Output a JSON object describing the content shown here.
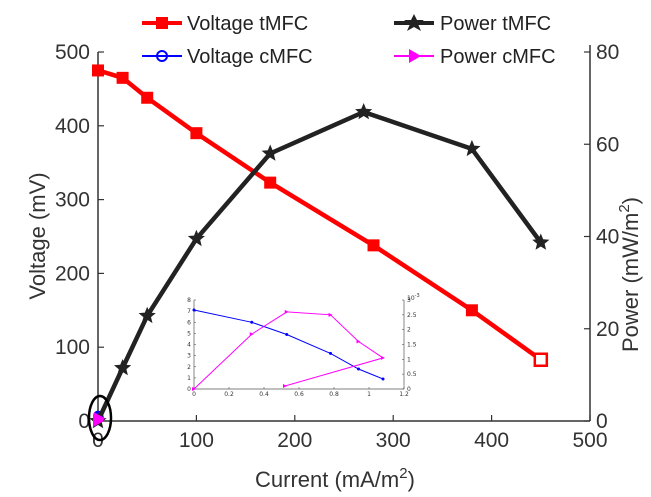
{
  "chart_data": {
    "type": "line",
    "xlabel": "Current (mA/m",
    "xlabel_sup": "2",
    "xlabel_close": ")",
    "ylabel_left": "Voltage (mV)",
    "ylabel_right": "Power (mW/m",
    "ylabel_right_sup": "2",
    "ylabel_right_close": ")",
    "xlim": [
      0,
      500
    ],
    "ylim_left": [
      0,
      500
    ],
    "ylim_right": [
      0,
      80
    ],
    "x_ticks": [
      "0",
      "100",
      "200",
      "300",
      "400",
      "500"
    ],
    "y_left_ticks": [
      "0",
      "100",
      "200",
      "300",
      "400",
      "500"
    ],
    "y_right_ticks": [
      "0",
      "20",
      "40",
      "60",
      "80"
    ],
    "grid": false,
    "legend_position": "top",
    "series": [
      {
        "name": "Voltage tMFC",
        "axis": "left",
        "color": "#ff0000",
        "marker": "square",
        "x": [
          0,
          25,
          50,
          100,
          175,
          280,
          380,
          450
        ],
        "y": [
          475,
          465,
          438,
          390,
          323,
          238,
          150,
          83
        ]
      },
      {
        "name": "Voltage cMFC",
        "axis": "left",
        "color": "#0000ff",
        "marker": "circle",
        "x": [
          0,
          0.5,
          1
        ],
        "y": [
          7.2,
          6.0,
          4.0
        ]
      },
      {
        "name": "Power tMFC",
        "axis": "right",
        "color": "#222222",
        "marker": "star",
        "x": [
          0,
          25,
          50,
          100,
          175,
          270,
          380,
          450
        ],
        "y": [
          0,
          11.5,
          22.8,
          39.5,
          58,
          67,
          59,
          38.7
        ]
      },
      {
        "name": "Power cMFC",
        "axis": "right",
        "color": "#ff00ff",
        "marker": "triangle-right",
        "x": [
          0,
          0.5,
          1
        ],
        "y": [
          0,
          0.3,
          0.6
        ]
      }
    ],
    "inset": {
      "x_ticks": [
        "0",
        "0.2",
        "0.4",
        "0.6",
        "0.8",
        "1",
        "1.2"
      ],
      "y_left_ticks": [
        "0",
        "1",
        "2",
        "3",
        "4",
        "5",
        "6",
        "7",
        "8"
      ],
      "y_right_ticks": [
        "0",
        "0.5",
        "1",
        "1.5",
        "2",
        "2.5",
        "3"
      ],
      "y_right_exponent": "10",
      "y_right_exponent_power": "-3",
      "xlim": [
        0,
        1.2
      ],
      "ylim_left": [
        0,
        8
      ],
      "ylim_right": [
        0,
        0.003
      ],
      "series": [
        {
          "name": "Voltage cMFC",
          "axis": "left",
          "color": "#0000ff",
          "x": [
            0,
            0.33,
            0.53,
            0.78,
            0.94,
            1.08
          ],
          "y": [
            7.1,
            6.0,
            4.9,
            3.2,
            1.8,
            0.9
          ]
        },
        {
          "name": "Power cMFC",
          "axis": "right",
          "color": "#ff00ff",
          "x": [
            0,
            0.33,
            0.53,
            0.78,
            0.94,
            1.08,
            0.52
          ],
          "y": [
            0,
            0.00185,
            0.0026,
            0.0025,
            0.0016,
            0.00105,
            0.0001
          ]
        }
      ]
    }
  }
}
